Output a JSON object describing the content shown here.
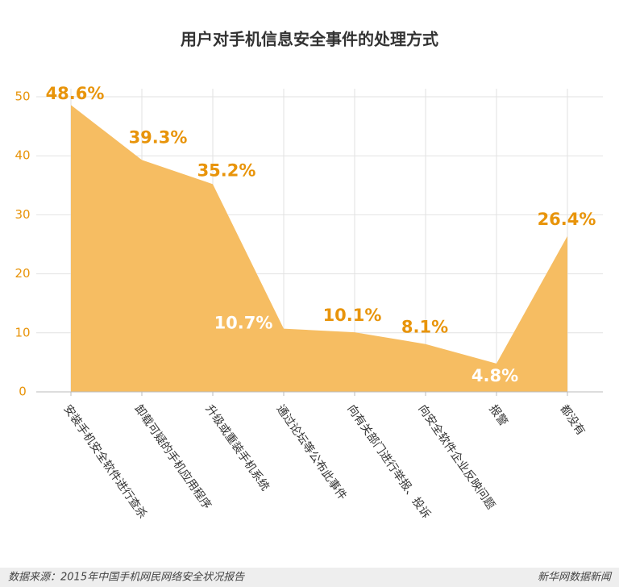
{
  "chart_data": {
    "type": "area",
    "title": "用户对手机信息安全事件的处理方式",
    "categories": [
      "安装手机安全软件进行查杀",
      "卸载可疑的手机应用程序",
      "升级或重装手机系统",
      "通过论坛等公布此事件",
      "向有关部门进行举报、投诉",
      "向安全软件企业反映问题",
      "报警",
      "都没有"
    ],
    "values": [
      48.6,
      39.3,
      35.2,
      10.7,
      10.1,
      8.1,
      4.8,
      26.4
    ],
    "value_labels": [
      "48.6%",
      "39.3%",
      "35.2%",
      "10.7%",
      "10.1%",
      "8.1%",
      "4.8%",
      "26.4%"
    ],
    "value_label_colors": [
      "#e8940a",
      "#e8940a",
      "#e8940a",
      "#ffffff",
      "#e8940a",
      "#e8940a",
      "#ffffff",
      "#e8940a"
    ],
    "color": "#f6bd62",
    "ylim": [
      0,
      50
    ],
    "yticks": [
      0,
      10,
      20,
      30,
      40,
      50
    ],
    "grid": true,
    "source": "数据来源：2015年中国手机网民网络安全状况报告",
    "brand": "新华网数据新闻"
  }
}
